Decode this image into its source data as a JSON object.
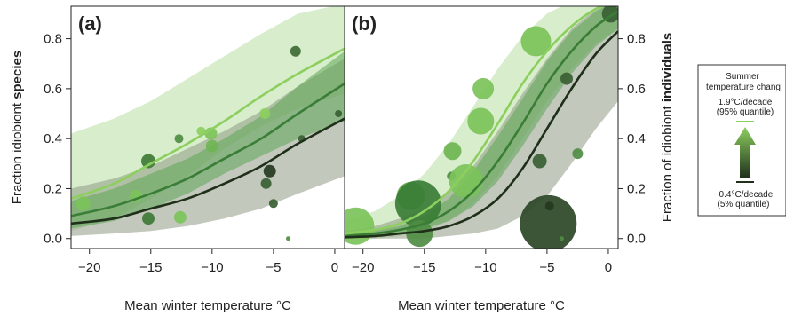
{
  "figure": {
    "legend": {
      "title_line1": "Summer",
      "title_line2": "temperature chang",
      "high_value": "1.9°C/decade",
      "high_quantile": "(95% quantile)",
      "low_value": "−0.4°C/decade",
      "low_quantile": "(5% quantile)",
      "colors": {
        "high": "#8dcf5f",
        "low": "#1f2f1a"
      }
    }
  },
  "chart_data": [
    {
      "type": "scatter",
      "panel_label": "(a)",
      "xlabel": "Mean winter temperature °C",
      "ylabel_plain": "Fraction idiobiont ",
      "ylabel_bold": "species",
      "xlim": [
        -21.5,
        0.8
      ],
      "ylim": [
        -0.04,
        0.93
      ],
      "xticks": [
        -20,
        -15,
        -10,
        -5,
        0
      ],
      "xtick_labels": [
        "−20",
        "−15",
        "−10",
        "−5",
        "0"
      ],
      "yticks": [
        0.0,
        0.2,
        0.4,
        0.6,
        0.8
      ],
      "ytick_labels": [
        "0.0",
        "0.2",
        "0.4",
        "0.6",
        "0.8"
      ],
      "curves": [
        {
          "color": "#8dcf5f",
          "band_color": "#b6dfa0",
          "x": [
            -21.5,
            -18,
            -15,
            -12,
            -9,
            -6,
            -3,
            0.8
          ],
          "y": [
            0.16,
            0.22,
            0.3,
            0.38,
            0.47,
            0.57,
            0.66,
            0.76
          ],
          "lower": [
            0.03,
            0.08,
            0.16,
            0.25,
            0.36,
            0.45,
            0.52,
            0.58
          ],
          "upper": [
            0.42,
            0.48,
            0.55,
            0.64,
            0.73,
            0.82,
            0.9,
            0.94
          ]
        },
        {
          "color": "#3a7d36",
          "band_color": "#5fa656",
          "x": [
            -21.5,
            -18,
            -15,
            -12,
            -9,
            -6,
            -3,
            0.8
          ],
          "y": [
            0.09,
            0.13,
            0.18,
            0.24,
            0.32,
            0.4,
            0.5,
            0.62
          ],
          "lower": [
            0.04,
            0.07,
            0.12,
            0.18,
            0.26,
            0.33,
            0.4,
            0.47
          ],
          "upper": [
            0.15,
            0.2,
            0.26,
            0.32,
            0.4,
            0.49,
            0.61,
            0.75
          ]
        },
        {
          "color": "#1f2f1a",
          "band_color": "#8f9b85",
          "x": [
            -21.5,
            -18,
            -15,
            -12,
            -9,
            -6,
            -3,
            0.8
          ],
          "y": [
            0.06,
            0.08,
            0.12,
            0.16,
            0.22,
            0.29,
            0.38,
            0.48
          ],
          "lower": [
            0.01,
            0.02,
            0.03,
            0.05,
            0.08,
            0.12,
            0.18,
            0.25
          ],
          "upper": [
            0.2,
            0.24,
            0.29,
            0.36,
            0.43,
            0.51,
            0.61,
            0.72
          ]
        }
      ],
      "points": [
        {
          "x": -20.5,
          "y": 0.14,
          "r": 8,
          "color": "#7cc35a"
        },
        {
          "x": -16.2,
          "y": 0.17,
          "r": 7,
          "color": "#7cc35a"
        },
        {
          "x": -15.2,
          "y": 0.31,
          "r": 8,
          "color": "#3f7a36"
        },
        {
          "x": -15.2,
          "y": 0.08,
          "r": 7,
          "color": "#3f7a36"
        },
        {
          "x": -12.6,
          "y": 0.085,
          "r": 7,
          "color": "#7cc35a"
        },
        {
          "x": -12.7,
          "y": 0.4,
          "r": 5,
          "color": "#4f8d43"
        },
        {
          "x": -10.9,
          "y": 0.43,
          "r": 5,
          "color": "#8dcf5f"
        },
        {
          "x": -10.1,
          "y": 0.42,
          "r": 7,
          "color": "#7cc35a"
        },
        {
          "x": -10.0,
          "y": 0.37,
          "r": 7,
          "color": "#6fb552"
        },
        {
          "x": -5.7,
          "y": 0.5,
          "r": 6,
          "color": "#8dcf5f"
        },
        {
          "x": -5.6,
          "y": 0.22,
          "r": 6,
          "color": "#3a5f33"
        },
        {
          "x": -5.3,
          "y": 0.27,
          "r": 7,
          "color": "#25381f"
        },
        {
          "x": -5.0,
          "y": 0.14,
          "r": 5,
          "color": "#3a5f33"
        },
        {
          "x": -3.2,
          "y": 0.75,
          "r": 6,
          "color": "#3f6b36"
        },
        {
          "x": -2.7,
          "y": 0.4,
          "r": 4,
          "color": "#3a5f33"
        },
        {
          "x": -3.8,
          "y": 0.0,
          "r": 2.5,
          "color": "#4f8d43"
        },
        {
          "x": 0.3,
          "y": 0.5,
          "r": 4,
          "color": "#3a5f33"
        }
      ]
    },
    {
      "type": "scatter",
      "panel_label": "(b)",
      "xlabel": "Mean winter temperature °C",
      "ylabel_plain": "Fraction of idiobiont ",
      "ylabel_bold": "individuals",
      "xlim": [
        -21.5,
        0.8
      ],
      "ylim": [
        -0.04,
        0.93
      ],
      "xticks": [
        -20,
        -15,
        -10,
        -5,
        0
      ],
      "xtick_labels": [
        "−20",
        "−15",
        "−10",
        "−5",
        "0"
      ],
      "yticks": [
        0.0,
        0.2,
        0.4,
        0.6,
        0.8
      ],
      "ytick_labels": [
        "0.0",
        "0.2",
        "0.4",
        "0.6",
        "0.8"
      ],
      "curves": [
        {
          "color": "#8dcf5f",
          "band_color": "#b6dfa0",
          "x": [
            -21.5,
            -19,
            -17,
            -15,
            -13,
            -11,
            -9,
            -7,
            -5,
            -3,
            -1,
            0.8
          ],
          "y": [
            0.02,
            0.035,
            0.06,
            0.11,
            0.19,
            0.31,
            0.46,
            0.62,
            0.75,
            0.85,
            0.92,
            0.95
          ],
          "lower": [
            0.0,
            0.0,
            0.01,
            0.03,
            0.07,
            0.14,
            0.25,
            0.4,
            0.55,
            0.68,
            0.78,
            0.84
          ],
          "upper": [
            0.07,
            0.11,
            0.17,
            0.26,
            0.38,
            0.53,
            0.68,
            0.81,
            0.9,
            0.95,
            0.97,
            0.98
          ]
        },
        {
          "color": "#3a7d36",
          "band_color": "#5fa656",
          "x": [
            -21.5,
            -19,
            -17,
            -15,
            -13,
            -11,
            -9,
            -7,
            -5,
            -3,
            -1,
            0.8
          ],
          "y": [
            0.01,
            0.02,
            0.035,
            0.06,
            0.11,
            0.19,
            0.31,
            0.46,
            0.62,
            0.75,
            0.85,
            0.91
          ],
          "lower": [
            0.0,
            0.01,
            0.02,
            0.04,
            0.07,
            0.13,
            0.23,
            0.37,
            0.52,
            0.66,
            0.77,
            0.84
          ],
          "upper": [
            0.02,
            0.03,
            0.05,
            0.09,
            0.16,
            0.27,
            0.41,
            0.56,
            0.71,
            0.83,
            0.91,
            0.96
          ]
        },
        {
          "color": "#1f2f1a",
          "band_color": "#8f9b85",
          "x": [
            -21.5,
            -19,
            -17,
            -15,
            -13,
            -11,
            -9,
            -7,
            -5,
            -3,
            -1,
            0.8
          ],
          "y": [
            0.005,
            0.01,
            0.02,
            0.03,
            0.05,
            0.09,
            0.16,
            0.28,
            0.44,
            0.6,
            0.74,
            0.83
          ],
          "lower": [
            0.0,
            0.0,
            0.0,
            0.0,
            0.01,
            0.02,
            0.04,
            0.09,
            0.17,
            0.3,
            0.44,
            0.55
          ],
          "upper": [
            0.03,
            0.05,
            0.08,
            0.12,
            0.19,
            0.29,
            0.43,
            0.58,
            0.72,
            0.84,
            0.92,
            0.96
          ]
        }
      ],
      "points": [
        {
          "x": -20.6,
          "y": 0.05,
          "r": 21,
          "color": "#7cc35a"
        },
        {
          "x": -16.1,
          "y": 0.17,
          "r": 16,
          "color": "#5fa646"
        },
        {
          "x": -15.5,
          "y": 0.14,
          "r": 26,
          "color": "#3a7d36"
        },
        {
          "x": -15.4,
          "y": 0.02,
          "r": 15,
          "color": "#4f8d43"
        },
        {
          "x": -12.8,
          "y": 0.25,
          "r": 5,
          "color": "#4f8d43"
        },
        {
          "x": -12.7,
          "y": 0.35,
          "r": 10,
          "color": "#6fb552"
        },
        {
          "x": -11.6,
          "y": 0.23,
          "r": 19,
          "color": "#7cc35a"
        },
        {
          "x": -10.2,
          "y": 0.6,
          "r": 12,
          "color": "#7cc35a"
        },
        {
          "x": -10.4,
          "y": 0.47,
          "r": 15,
          "color": "#7cc35a"
        },
        {
          "x": -5.9,
          "y": 0.79,
          "r": 17,
          "color": "#7cc35a"
        },
        {
          "x": -5.6,
          "y": 0.31,
          "r": 8,
          "color": "#3a5f33"
        },
        {
          "x": -4.9,
          "y": 0.06,
          "r": 32,
          "color": "#2b4626"
        },
        {
          "x": -4.8,
          "y": 0.13,
          "r": 5,
          "color": "#25381f"
        },
        {
          "x": -3.4,
          "y": 0.64,
          "r": 7,
          "color": "#3a5f33"
        },
        {
          "x": -2.5,
          "y": 0.34,
          "r": 6,
          "color": "#4f8d43"
        },
        {
          "x": -3.8,
          "y": 0.0,
          "r": 2.5,
          "color": "#4f8d43"
        },
        {
          "x": 0.2,
          "y": 0.9,
          "r": 10,
          "color": "#3a5f33"
        }
      ]
    }
  ]
}
